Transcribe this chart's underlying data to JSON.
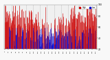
{
  "bar_color_high": "#cc0000",
  "bar_color_low": "#0000cc",
  "legend_high_label": "High",
  "legend_low_label": "Low",
  "background_color": "#f8f8f8",
  "plot_bg_color": "#f0f0f0",
  "num_days": 365,
  "ylim": [
    20,
    100
  ],
  "yticks": [
    20,
    40,
    60,
    80,
    100
  ],
  "grid_color": "#aaaaaa",
  "reference": 60.0,
  "seed": 99
}
